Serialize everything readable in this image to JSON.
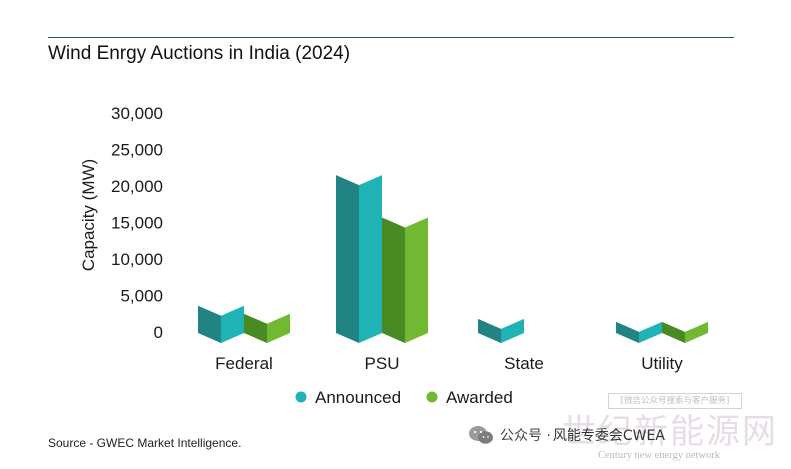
{
  "title": "Wind Enrgy Auctions in India (2024)",
  "source": "Source - GWEC Market Intelligence.",
  "chart_data": {
    "type": "bar",
    "title": "Wind Enrgy Auctions in India (2024)",
    "xlabel": "",
    "ylabel": "Capacity (MW)",
    "ylim": [
      0,
      30000
    ],
    "yticks": [
      "30,000",
      "25,000",
      "20,000",
      "15,000",
      "10,000",
      "5,000",
      "0"
    ],
    "categories": [
      "Federal",
      "PSU",
      "State",
      "Utility"
    ],
    "series": [
      {
        "name": "Announced",
        "values": [
          5100,
          23000,
          3300,
          2900
        ],
        "color": "#1fb3b5",
        "dark_color": "#218482"
      },
      {
        "name": "Awarded",
        "values": [
          4000,
          17200,
          0,
          2900
        ],
        "color": "#73b833",
        "dark_color": "#4a8a23"
      }
    ],
    "grid": false,
    "legend": "bottom"
  },
  "watermark": {
    "box_text": "[微信公众号搜索与客户服务]",
    "big_text": "世纪新能源网",
    "sub_text": "Century new energy network",
    "publisher_prefix": "公众号 · ",
    "publisher_name": "风能专委会CWEA"
  }
}
